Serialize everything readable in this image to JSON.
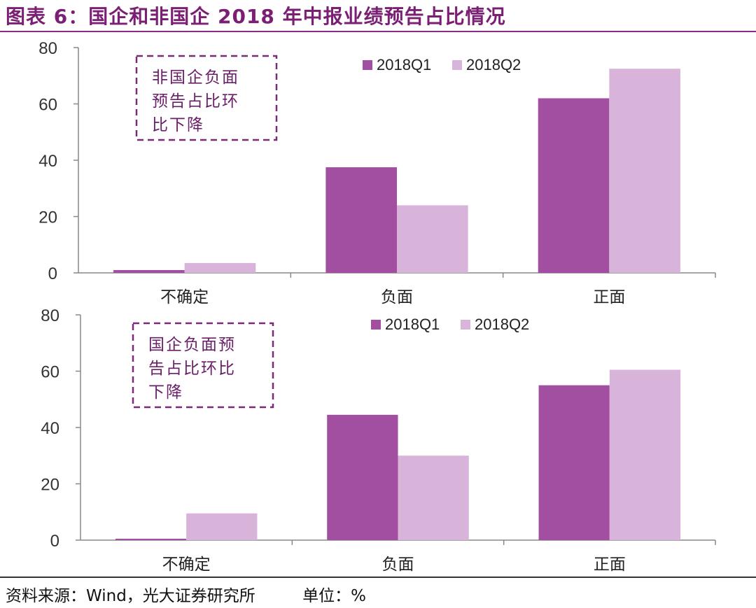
{
  "title": "图表 6：国企和非国企 2018 年中报业绩预告占比情况",
  "footer": {
    "source": "资料来源：Wind，光大证券研究所",
    "unit": "单位：%"
  },
  "colors": {
    "q1": "#a24ea1",
    "q2": "#d9b4da",
    "annotation_border": "#7a2a78",
    "annotation_text": "#6a1f68",
    "axis": "#888888",
    "tick_text": "#333333"
  },
  "chart_data": [
    {
      "type": "bar",
      "categories": [
        "不确定",
        "负面",
        "正面"
      ],
      "series": [
        {
          "name": "2018Q1",
          "values": [
            1,
            37.5,
            62
          ]
        },
        {
          "name": "2018Q2",
          "values": [
            3.5,
            24,
            72.5
          ]
        }
      ],
      "ylim": [
        0,
        80
      ],
      "yticks": [
        0,
        20,
        40,
        60,
        80
      ],
      "legend": "top-center",
      "grid": false,
      "annotation": [
        "非国企负面",
        "预告占比环",
        "比下降"
      ]
    },
    {
      "type": "bar",
      "categories": [
        "不确定",
        "负面",
        "正面"
      ],
      "series": [
        {
          "name": "2018Q1",
          "values": [
            0.5,
            44.5,
            55
          ]
        },
        {
          "name": "2018Q2",
          "values": [
            9.5,
            30,
            60.5
          ]
        }
      ],
      "ylim": [
        0,
        80
      ],
      "yticks": [
        0,
        20,
        40,
        60,
        80
      ],
      "legend": "top-center",
      "grid": false,
      "annotation": [
        "国企负面预",
        "告占比环比",
        "下降"
      ]
    }
  ]
}
